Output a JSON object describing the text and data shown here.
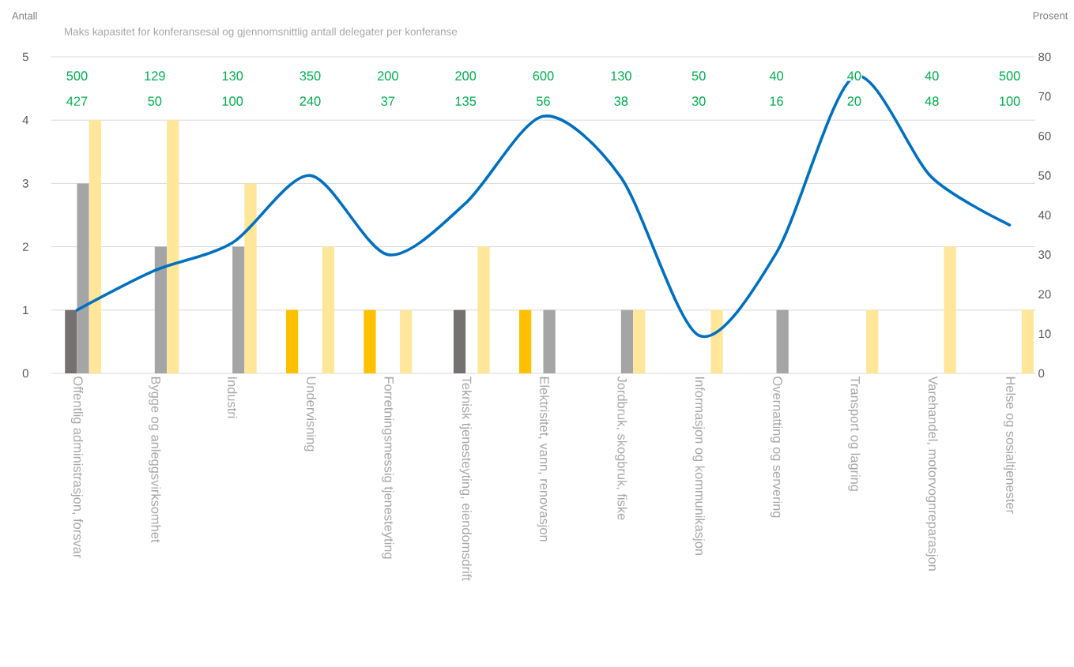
{
  "chart_data": {
    "type": "bar",
    "title": "Maks kapasitet for konferansesal og gjennomsnittlig antall delegater per konferanse",
    "ylabel": "Antall",
    "y2label": "Prosent",
    "categories": [
      "Offentlig administrasjon, forsvar",
      "Bygge og anleggsvirksomhet",
      "Industri",
      "Undervisning",
      "Forretningsmessig tjenesteyting",
      "Teknisk tjenesteyting, eiendomsdrift",
      "Elektrisitet, vann, renovasjon",
      "Jordbruk, skogbruk, fiske",
      "Informasjon og kommunikasjon",
      "Overnatting og servering",
      "Transport og lagring",
      "Varehandel, motorvognreparasjon",
      "Helse og sosialtjenester"
    ],
    "series": [
      {
        "color": "#ffc000",
        "values": [
          0,
          0,
          0,
          1,
          1,
          0,
          1,
          0,
          0,
          0,
          0,
          0,
          0
        ]
      },
      {
        "color": "#767171",
        "values": [
          1,
          0,
          0,
          0,
          0,
          1,
          0,
          0,
          0,
          0,
          0,
          0,
          0
        ]
      },
      {
        "color": "#a5a5a5",
        "values": [
          3,
          2,
          2,
          0,
          0,
          0,
          1,
          1,
          0,
          1,
          0,
          0,
          0
        ]
      },
      {
        "color": "#ffe699",
        "values": [
          4,
          4,
          3,
          2,
          1,
          2,
          0,
          1,
          1,
          0,
          1,
          2,
          1
        ]
      },
      {
        "type": "line",
        "axis": "y2",
        "color": "#0070c0",
        "values": [
          16,
          26,
          33,
          50,
          30,
          43,
          65,
          49.5,
          9.6,
          30.5,
          75,
          49.5,
          37.5
        ]
      }
    ],
    "ylim": [
      0,
      5
    ],
    "yticks": [
      0,
      1,
      2,
      3,
      4,
      5
    ],
    "y2lim": [
      0,
      80
    ],
    "y2ticks": [
      0,
      10,
      20,
      30,
      40,
      50,
      60,
      70,
      80
    ],
    "grid": "y",
    "marker": "none",
    "line_style": "solid",
    "annotations": [
      "500",
      "427",
      "129",
      "50",
      "130",
      "100",
      "350",
      "240",
      "200",
      "37",
      "200",
      "135",
      "600",
      "56",
      "130",
      "38",
      "50",
      "30",
      "40",
      "16",
      "40",
      "20",
      "40",
      "48",
      "500",
      "100"
    ]
  }
}
